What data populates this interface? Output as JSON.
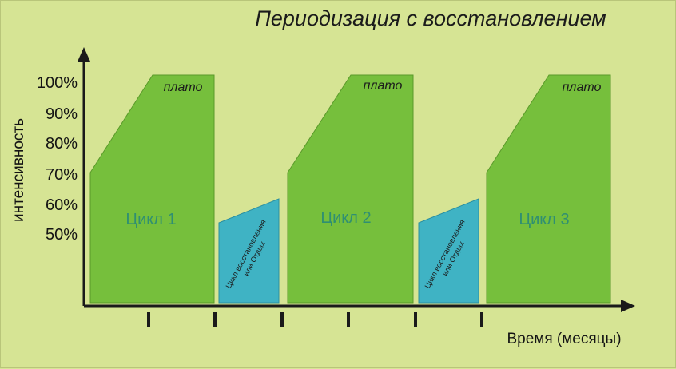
{
  "title": "Периодизация с восстановлением",
  "y_axis": {
    "title": "интенсивность",
    "tick_labels": [
      "100%",
      "90%",
      "80%",
      "70%",
      "60%",
      "50%"
    ]
  },
  "x_axis": {
    "title": "Время (месяцы)",
    "tick_count": 6
  },
  "cycles": [
    {
      "label": "Цикл 1",
      "plateau_label": "плато"
    },
    {
      "label": "Цикл 2",
      "plateau_label": "плато"
    },
    {
      "label": "Цикл 3",
      "plateau_label": "плато"
    }
  ],
  "recovery_blocks": [
    {
      "line1": "Цикл восстановления",
      "line2": "или Отдых"
    },
    {
      "line1": "Цикл восстановления",
      "line2": "или Отдых"
    }
  ],
  "colors": {
    "background": "#d6e494",
    "cycle_fill": "#76bf3c",
    "cycle_stroke": "#5a9a2a",
    "recovery_fill": "#3fb3c4",
    "recovery_stroke": "#2c8fa0",
    "axis": "#1a1a1a",
    "cycle_text": "#2f8f72"
  }
}
